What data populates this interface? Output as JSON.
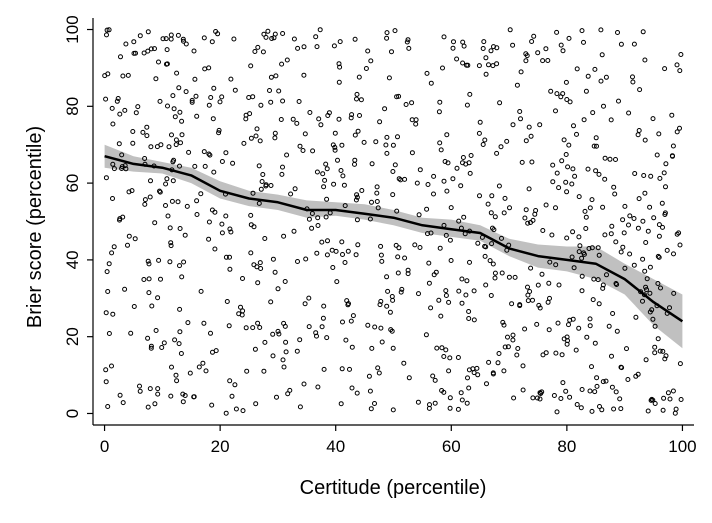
{
  "chart_data": {
    "type": "scatter",
    "xlabel": "Certitude (percentile)",
    "ylabel": "Brier score (percentile)",
    "xlim": [
      -2,
      102
    ],
    "ylim": [
      -3,
      103
    ],
    "xticks": [
      0,
      20,
      40,
      60,
      80,
      100
    ],
    "yticks": [
      0,
      20,
      40,
      60,
      80,
      100
    ],
    "grid": false,
    "legend": "none",
    "points_summary": "about 1000 hollow circle markers scattered across the full range; density increases toward upper-left and lower-right",
    "scatter_count": 1000,
    "trend": {
      "style": "smoothed line with shaded 95% confidence band",
      "x": [
        0,
        5,
        10,
        15,
        20,
        25,
        30,
        35,
        40,
        45,
        50,
        55,
        60,
        65,
        70,
        75,
        80,
        85,
        90,
        95,
        100
      ],
      "y": [
        67,
        65,
        64,
        62,
        58,
        56,
        55,
        53,
        53,
        52,
        51,
        49,
        48,
        47,
        43,
        41,
        40,
        39,
        35,
        29,
        24
      ],
      "lower": [
        64,
        63,
        62.5,
        60,
        56,
        54,
        53,
        51,
        51.5,
        50.5,
        49,
        47,
        46,
        45,
        41,
        38,
        37,
        35,
        31,
        23,
        17
      ],
      "upper": [
        70,
        67,
        65.5,
        64,
        60.5,
        58,
        57,
        55.5,
        55,
        54.5,
        53,
        51,
        50.5,
        49,
        45.5,
        44,
        43.5,
        43.5,
        39,
        35,
        31
      ]
    },
    "colors": {
      "points": "#000000",
      "line": "#000000",
      "band": "#c0c0c0",
      "axis": "#000000",
      "background": "#ffffff"
    }
  }
}
